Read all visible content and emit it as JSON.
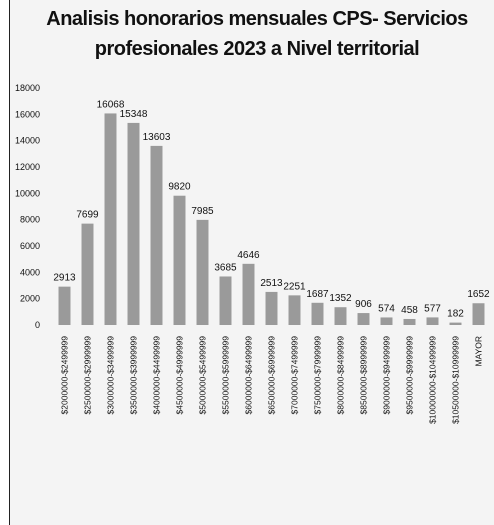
{
  "chart_data": {
    "type": "bar",
    "title": "Analisis honorarios mensuales CPS- Servicios profesionales 2023 a Nivel territorial",
    "title_lines": [
      "Analisis honorarios mensuales CPS- Servicios",
      "profesionales 2023 a Nivel territorial"
    ],
    "categories": [
      "$2000000-$2499999",
      "$2500000-$2999999",
      "$3000000-$3499999",
      "$3500000-$3999999",
      "$4000000-$4499999",
      "$4500000-$4999999",
      "$5000000-$5499999",
      "$5500000-$5999999",
      "$6000000-$6499999",
      "$6500000-$6999999",
      "$7000000-$7499999",
      "$7500000-$7999999",
      "$8000000-$8499999",
      "$8500000-$8999999",
      "$9000000-$9499999",
      "$9500000-$9999999",
      "$10000000-$10499999",
      "$10500000-$10999999",
      "MAYOR"
    ],
    "values": [
      2913,
      7699,
      16068,
      15348,
      13603,
      9820,
      7985,
      3685,
      4646,
      2513,
      2251,
      1687,
      1352,
      906,
      574,
      458,
      577,
      182,
      1652
    ],
    "ylim": [
      0,
      18000
    ],
    "yticks": [
      0,
      2000,
      4000,
      6000,
      8000,
      10000,
      12000,
      14000,
      16000,
      18000
    ],
    "xlabel": "",
    "ylabel": "",
    "grid": false,
    "legend": "none",
    "bar_color": "#9a9a9a"
  }
}
